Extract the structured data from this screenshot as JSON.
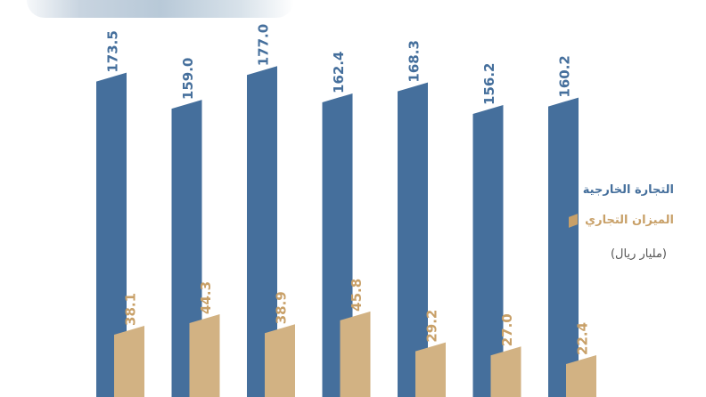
{
  "chart_data": {
    "type": "bar",
    "categories": [
      "",
      "",
      "",
      "",
      "",
      "",
      ""
    ],
    "series": [
      {
        "name": "التجارة الخارجية",
        "values": [
          173.5,
          159.0,
          177.0,
          162.4,
          168.3,
          156.2,
          160.2
        ],
        "color": "#456f9c"
      },
      {
        "name": "الميزان التجاري",
        "values": [
          38.1,
          44.3,
          38.9,
          45.8,
          29.2,
          27.0,
          22.4
        ],
        "color": "#d2b283"
      }
    ],
    "value_labels_trade": [
      "173.5",
      "159.0",
      "177.0",
      "162.4",
      "168.3",
      "156.2",
      "160.2"
    ],
    "value_labels_balance": [
      "38.1",
      "44.3",
      "38.9",
      "45.8",
      "29.2",
      "27.0",
      "22.4"
    ],
    "unit": "(مليار ريال)",
    "legend_position": "right"
  },
  "decoration": {
    "icon": "cargo-containers-image"
  }
}
